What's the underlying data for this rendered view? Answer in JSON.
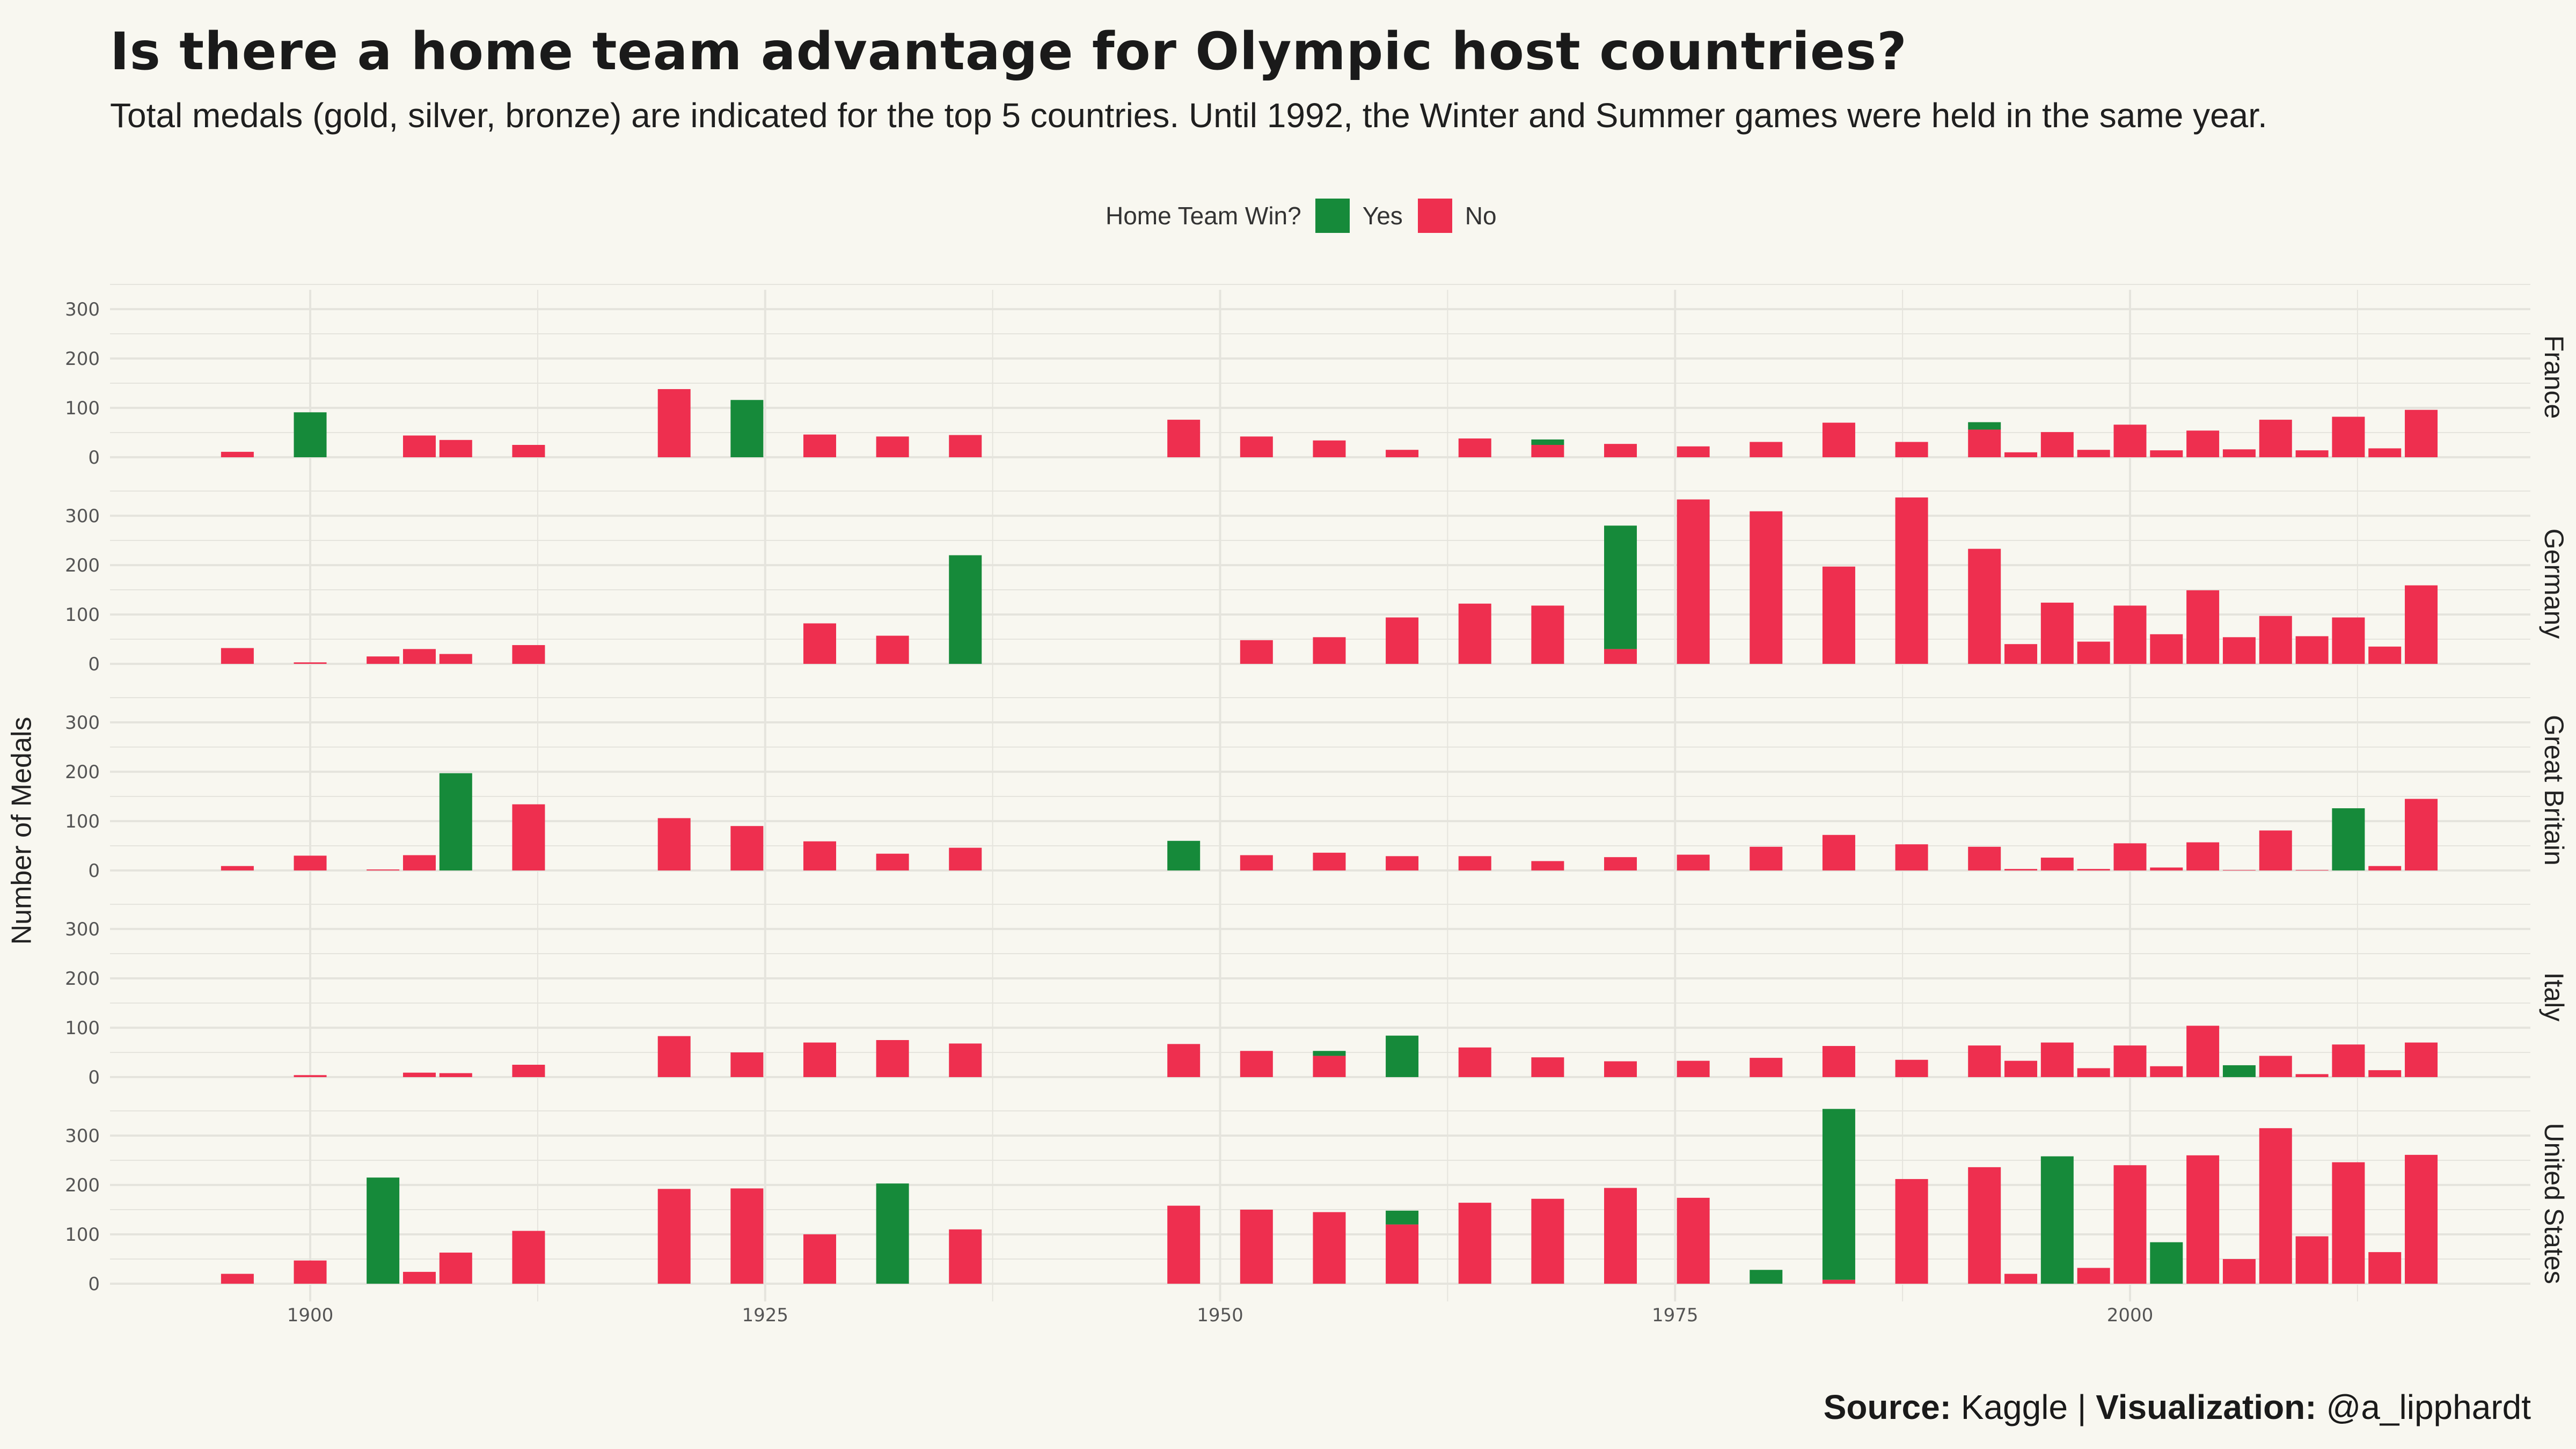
{
  "title": "Is there a home team advantage for Olympic host countries?",
  "subtitle": "Total medals (gold, silver, bronze) are indicated for the top 5 countries. Until 1992, the Winter and Summer games were held in the same year.",
  "legend": {
    "title": "Home Team Win?",
    "yes": "Yes",
    "no": "No"
  },
  "source": {
    "label1": "Source:",
    "value1": " Kaggle | ",
    "label2": "Visualization:",
    "value2": " @a_lipphardt"
  },
  "colors": {
    "yes": "#168a3a",
    "no": "#ee2f4f",
    "background": "#f8f7f0",
    "grid": "#e5e4dd"
  },
  "chart_data": {
    "type": "bar",
    "stacked": true,
    "ylabel": "Number of Medals",
    "xlim": [
      1889,
      2022
    ],
    "ylim": [
      0,
      350
    ],
    "xticks": [
      1900,
      1925,
      1950,
      1975,
      2000
    ],
    "yticks": [
      0,
      100,
      200,
      300
    ],
    "grid": true,
    "legend_position": "top",
    "facets": [
      "France",
      "Germany",
      "Great Britain",
      "Italy",
      "United States"
    ],
    "x": [
      1896,
      1900,
      1904,
      1906,
      1908,
      1912,
      1920,
      1924,
      1928,
      1932,
      1936,
      1948,
      1952,
      1956,
      1960,
      1964,
      1968,
      1972,
      1976,
      1980,
      1984,
      1988,
      1992,
      1994,
      1996,
      1998,
      2000,
      2002,
      2004,
      2006,
      2008,
      2010,
      2012,
      2014,
      2016
    ],
    "series": [
      {
        "country": "France",
        "no": [
          11,
          0,
          0,
          44,
          35,
          25,
          138,
          0,
          46,
          42,
          45,
          76,
          42,
          34,
          15,
          38,
          25,
          27,
          22,
          31,
          70,
          31,
          56,
          10,
          51,
          15,
          66,
          14,
          54,
          16,
          76,
          14,
          82,
          18,
          96
        ],
        "yes": [
          0,
          91,
          0,
          0,
          0,
          0,
          0,
          116,
          0,
          0,
          0,
          0,
          0,
          0,
          0,
          0,
          11,
          0,
          0,
          0,
          0,
          0,
          15,
          0,
          0,
          0,
          0,
          0,
          0,
          0,
          0,
          0,
          0,
          0,
          0
        ]
      },
      {
        "country": "Germany",
        "no": [
          32,
          3,
          15,
          30,
          20,
          38,
          0,
          0,
          82,
          57,
          0,
          0,
          48,
          54,
          94,
          122,
          118,
          30,
          333,
          309,
          197,
          337,
          233,
          40,
          124,
          45,
          118,
          60,
          149,
          54,
          97,
          56,
          94,
          35,
          159
        ],
        "yes": [
          0,
          0,
          0,
          0,
          0,
          0,
          0,
          0,
          0,
          0,
          220,
          0,
          0,
          0,
          0,
          0,
          0,
          250,
          0,
          0,
          0,
          0,
          0,
          0,
          0,
          0,
          0,
          0,
          0,
          0,
          0,
          0,
          0,
          0,
          0
        ]
      },
      {
        "country": "Great Britain",
        "no": [
          9,
          30,
          2,
          31,
          0,
          134,
          106,
          90,
          59,
          34,
          46,
          0,
          31,
          36,
          29,
          29,
          19,
          27,
          32,
          48,
          72,
          53,
          48,
          3,
          26,
          3,
          55,
          6,
          57,
          1,
          81,
          1,
          0,
          9,
          145
        ],
        "yes": [
          0,
          0,
          0,
          0,
          197,
          0,
          0,
          0,
          0,
          0,
          0,
          60,
          0,
          0,
          0,
          0,
          0,
          0,
          0,
          0,
          0,
          0,
          0,
          0,
          0,
          0,
          0,
          0,
          0,
          0,
          0,
          0,
          126,
          0,
          0
        ]
      },
      {
        "country": "Italy",
        "no": [
          0,
          4,
          0,
          9,
          8,
          25,
          83,
          50,
          70,
          75,
          68,
          67,
          53,
          43,
          0,
          60,
          40,
          32,
          33,
          39,
          63,
          35,
          64,
          33,
          70,
          18,
          64,
          22,
          104,
          0,
          43,
          6,
          66,
          14,
          70
        ],
        "yes": [
          0,
          0,
          0,
          0,
          0,
          0,
          0,
          0,
          0,
          0,
          0,
          0,
          0,
          10,
          84,
          0,
          0,
          0,
          0,
          0,
          0,
          0,
          0,
          0,
          0,
          0,
          0,
          0,
          0,
          24,
          0,
          0,
          0,
          0,
          0
        ]
      },
      {
        "country": "United States",
        "no": [
          20,
          47,
          0,
          24,
          63,
          107,
          192,
          193,
          100,
          0,
          110,
          158,
          150,
          145,
          120,
          164,
          172,
          194,
          174,
          0,
          8,
          212,
          236,
          20,
          0,
          32,
          240,
          0,
          260,
          50,
          315,
          96,
          246,
          64,
          261
        ],
        "yes": [
          0,
          0,
          215,
          0,
          0,
          0,
          0,
          0,
          0,
          203,
          0,
          0,
          0,
          0,
          28,
          0,
          0,
          0,
          0,
          28,
          346,
          0,
          0,
          0,
          258,
          0,
          0,
          84,
          0,
          0,
          0,
          0,
          0,
          0,
          0
        ]
      }
    ]
  }
}
